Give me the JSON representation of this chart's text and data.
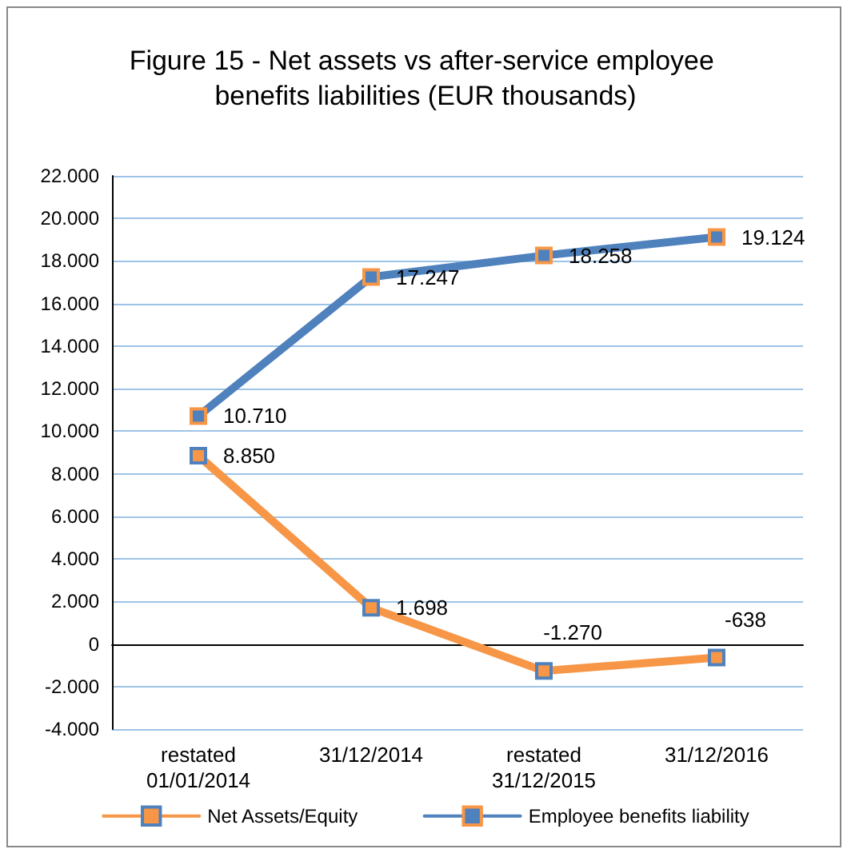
{
  "chart_data": {
    "type": "line",
    "title": "Figure 15 - Net assets vs after-service employee benefits liabilities (EUR thousands)",
    "categories": [
      "restated\n01/01/2014",
      "31/12/2014",
      "restated\n31/12/2015",
      "31/12/2016"
    ],
    "series": [
      {
        "name": "Net Assets/Equity",
        "color": "#f79646",
        "values": [
          8850,
          1698,
          -1270,
          -638
        ],
        "value_labels": [
          "8.850",
          "1.698",
          "-1.270",
          "-638"
        ]
      },
      {
        "name": "Employee benefits liability",
        "color": "#4f81bd",
        "values": [
          10710,
          17247,
          18258,
          19124
        ],
        "value_labels": [
          "10.710",
          "17.247",
          "18.258",
          "19.124"
        ]
      }
    ],
    "ylim": [
      -4000,
      22000
    ],
    "yticks": [
      {
        "value": -4000,
        "label": "-4.000"
      },
      {
        "value": -2000,
        "label": "-2.000"
      },
      {
        "value": 0,
        "label": "0"
      },
      {
        "value": 2000,
        "label": "2.000"
      },
      {
        "value": 4000,
        "label": "4.000"
      },
      {
        "value": 6000,
        "label": "6.000"
      },
      {
        "value": 8000,
        "label": "8.000"
      },
      {
        "value": 10000,
        "label": "10.000"
      },
      {
        "value": 12000,
        "label": "12.000"
      },
      {
        "value": 14000,
        "label": "14.000"
      },
      {
        "value": 16000,
        "label": "16.000"
      },
      {
        "value": 18000,
        "label": "18.000"
      },
      {
        "value": 20000,
        "label": "20.000"
      },
      {
        "value": 22000,
        "label": "22.000"
      }
    ],
    "grid": "y",
    "legend": "bottom",
    "marker": "square",
    "line_style": "solid"
  }
}
